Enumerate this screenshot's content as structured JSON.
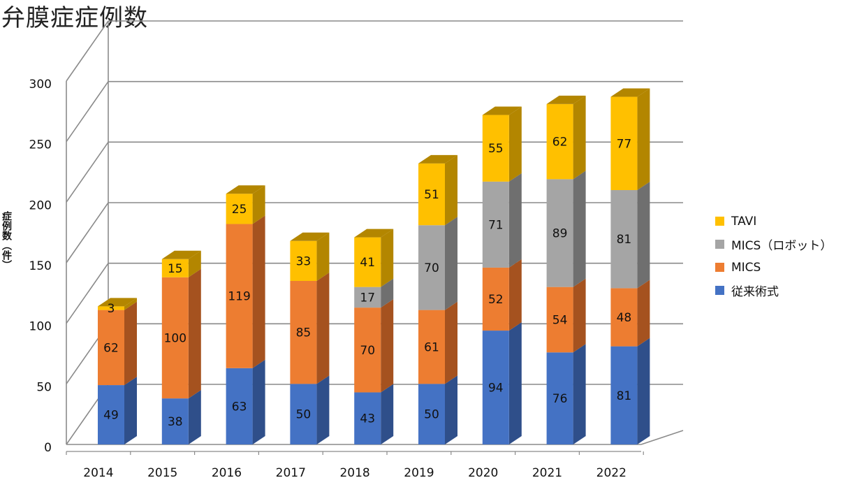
{
  "title": "弁膜症症例数",
  "chart_data": {
    "type": "bar",
    "stacked": true,
    "three_d": true,
    "title": "弁膜症症例数",
    "xlabel": "",
    "ylabel": "症例数（件）",
    "ylim": [
      0,
      300
    ],
    "yticks": [
      0,
      50,
      100,
      150,
      200,
      250,
      300
    ],
    "grid": true,
    "legend_position": "right",
    "categories": [
      "2014",
      "2015",
      "2016",
      "2017",
      "2018",
      "2019",
      "2020",
      "2021",
      "2022"
    ],
    "series": [
      {
        "name": "従来術式",
        "color": "#4472c4",
        "side_color": "#2f4f8a",
        "values": [
          49,
          38,
          63,
          50,
          43,
          50,
          94,
          76,
          81
        ]
      },
      {
        "name": "MICS",
        "color": "#ed7d31",
        "side_color": "#a5521f",
        "values": [
          62,
          100,
          119,
          85,
          70,
          61,
          52,
          54,
          48
        ]
      },
      {
        "name": "MICS（ロボット）",
        "color": "#a5a5a5",
        "side_color": "#6f6f6f",
        "values": [
          0,
          0,
          0,
          0,
          17,
          70,
          71,
          89,
          81
        ]
      },
      {
        "name": "TAVI",
        "color": "#ffc000",
        "side_color": "#b38600",
        "values": [
          3,
          15,
          25,
          33,
          41,
          51,
          55,
          62,
          77
        ]
      }
    ]
  }
}
